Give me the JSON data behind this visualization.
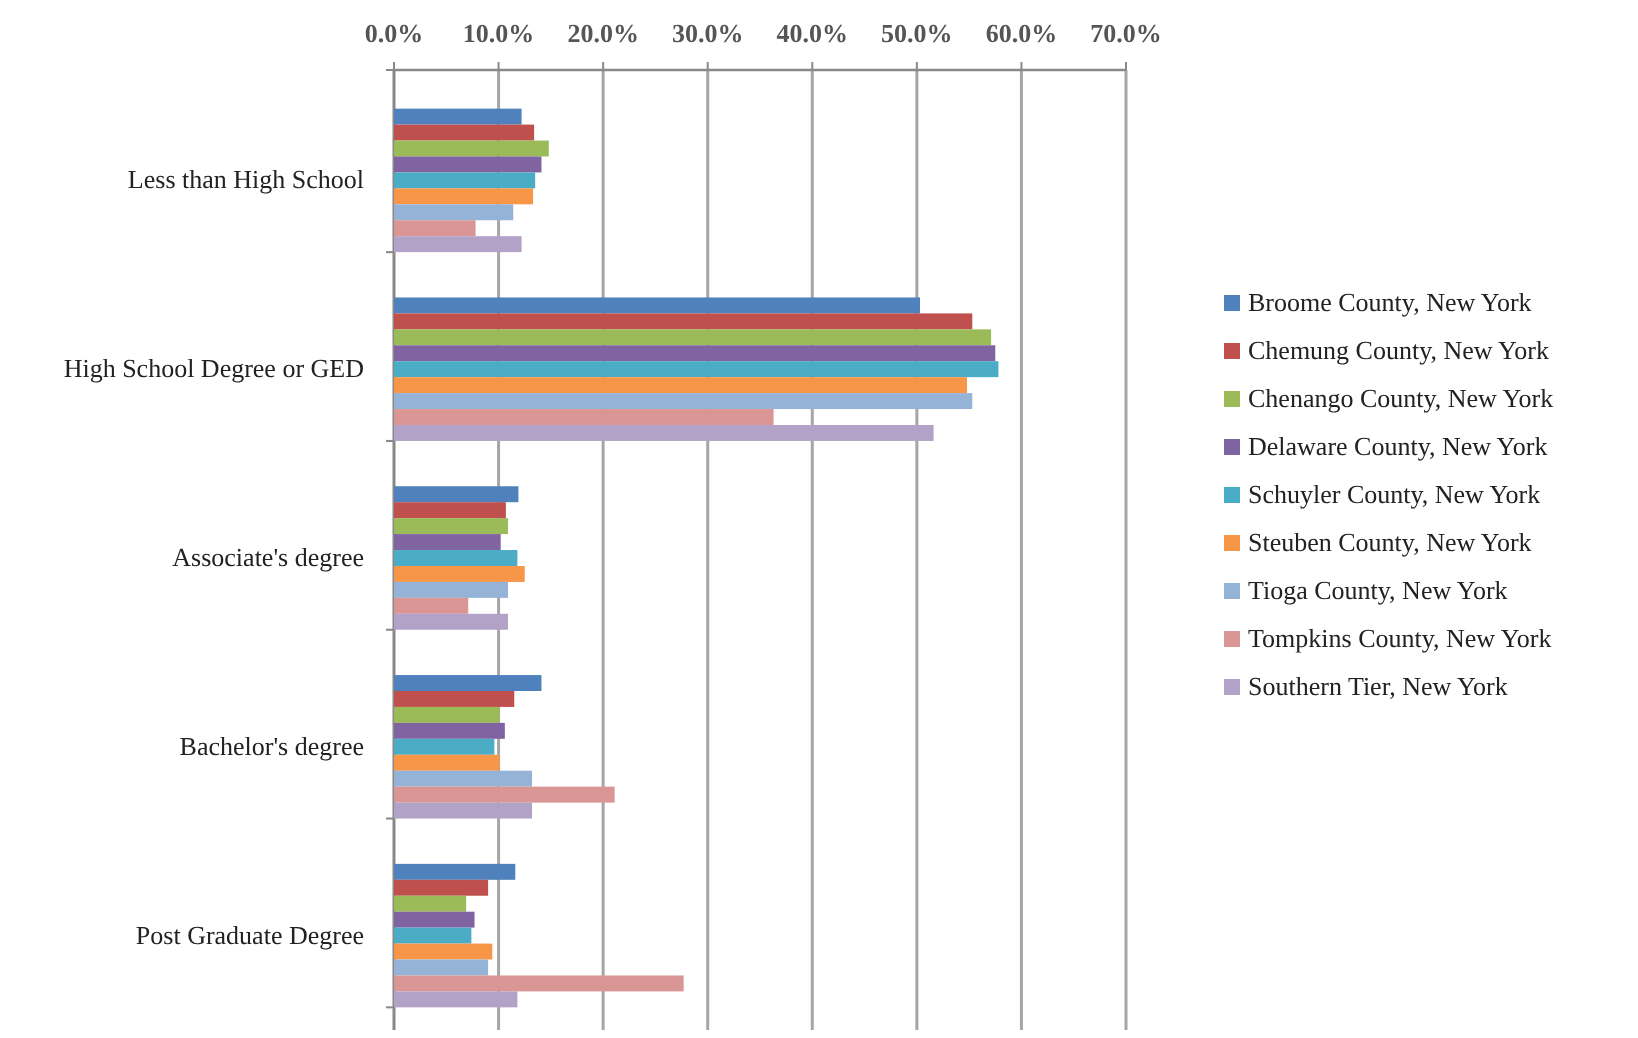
{
  "chart_data": {
    "type": "bar",
    "orientation": "horizontal",
    "categories": [
      "Less than High School",
      "High School Degree or GED",
      "Associate's degree",
      "Bachelor's degree",
      "Post Graduate Degree"
    ],
    "series": [
      {
        "name": "Broome County, New York",
        "color": "#4f81bd",
        "values": [
          12.2,
          50.3,
          11.9,
          14.1,
          11.6
        ]
      },
      {
        "name": "Chemung County, New York",
        "color": "#c0504d",
        "values": [
          13.4,
          55.3,
          10.7,
          11.5,
          9.0
        ]
      },
      {
        "name": "Chenango County, New York",
        "color": "#9bbb59",
        "values": [
          14.8,
          57.1,
          10.9,
          10.1,
          6.9
        ]
      },
      {
        "name": "Delaware County, New York",
        "color": "#8064a2",
        "values": [
          14.1,
          57.5,
          10.2,
          10.6,
          7.7
        ]
      },
      {
        "name": "Schuyler County, New York",
        "color": "#4bacc6",
        "values": [
          13.5,
          57.8,
          11.8,
          9.6,
          7.4
        ]
      },
      {
        "name": "Steuben County, New York",
        "color": "#f79646",
        "values": [
          13.3,
          54.8,
          12.5,
          10.1,
          9.4
        ]
      },
      {
        "name": "Tioga County, New York",
        "color": "#95b3d7",
        "values": [
          11.4,
          55.3,
          10.9,
          13.2,
          9.0
        ]
      },
      {
        "name": "Tompkins County, New York",
        "color": "#d99694",
        "values": [
          7.8,
          36.3,
          7.1,
          21.1,
          27.7
        ]
      },
      {
        "name": "Southern Tier, New York",
        "color": "#b3a2c7",
        "values": [
          12.2,
          51.6,
          10.9,
          13.2,
          11.8
        ]
      }
    ],
    "xlim": [
      0,
      70
    ],
    "xticks": [
      {
        "value": 0,
        "label": "0.0%"
      },
      {
        "value": 10,
        "label": "10.0%"
      },
      {
        "value": 20,
        "label": "20.0%"
      },
      {
        "value": 30,
        "label": "30.0%"
      },
      {
        "value": 40,
        "label": "40.0%"
      },
      {
        "value": 50,
        "label": "50.0%"
      },
      {
        "value": 60,
        "label": "60.0%"
      },
      {
        "value": 70,
        "label": "70.0%"
      }
    ],
    "grid": "x",
    "legend": "right"
  }
}
